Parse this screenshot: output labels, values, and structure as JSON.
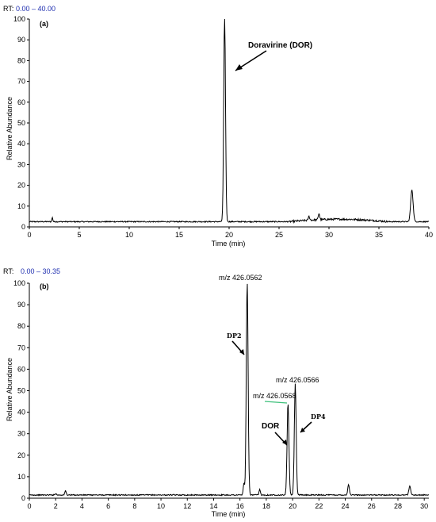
{
  "chart_data": [
    {
      "type": "line",
      "panel_label": "(a)",
      "rt_label": "RT:",
      "rt_range": "0.00 – 40.00",
      "xlabel": "Time (min)",
      "ylabel": "Relative Abundance",
      "xlim": [
        0,
        40
      ],
      "ylim": [
        0,
        100
      ],
      "xticks": [
        0,
        5,
        10,
        15,
        20,
        25,
        30,
        35,
        40
      ],
      "yticks": [
        0,
        10,
        20,
        30,
        40,
        50,
        60,
        70,
        80,
        90,
        100
      ],
      "baseline": 2.5,
      "peaks": [
        {
          "x": 2.3,
          "y": 4.5,
          "w": 0.05
        },
        {
          "x": 19.55,
          "y": 100,
          "w": 0.09
        },
        {
          "x": 28.0,
          "y": 4.3,
          "w": 0.07
        },
        {
          "x": 29.0,
          "y": 5.5,
          "w": 0.07
        },
        {
          "x": 38.3,
          "y": 18,
          "w": 0.12
        }
      ],
      "annotations": [
        {
          "text": "Doravirine (DOR)",
          "x": 20.8,
          "y": 75
        }
      ]
    },
    {
      "type": "line",
      "panel_label": "(b)",
      "rt_label": "RT:",
      "rt_range": "0.00 – 30.35",
      "xlabel": "Time (min)",
      "ylabel": "Relative Abundance",
      "xlim": [
        0,
        30.35
      ],
      "ylim": [
        0,
        100
      ],
      "xticks": [
        0,
        2,
        4,
        6,
        8,
        10,
        12,
        14,
        16,
        18,
        20,
        22,
        24,
        26,
        28,
        30
      ],
      "yticks": [
        0,
        10,
        20,
        30,
        40,
        50,
        60,
        70,
        80,
        90,
        100
      ],
      "baseline": 1.5,
      "peaks": [
        {
          "x": 2.0,
          "y": 2.2,
          "w": 0.05
        },
        {
          "x": 2.75,
          "y": 3.5,
          "w": 0.05
        },
        {
          "x": 16.3,
          "y": 7.0,
          "w": 0.05
        },
        {
          "x": 16.55,
          "y": 100,
          "w": 0.07
        },
        {
          "x": 17.5,
          "y": 4.0,
          "w": 0.05
        },
        {
          "x": 19.65,
          "y": 44,
          "w": 0.07
        },
        {
          "x": 20.2,
          "y": 53,
          "w": 0.07
        },
        {
          "x": 24.25,
          "y": 6.5,
          "w": 0.06
        },
        {
          "x": 28.9,
          "y": 5.5,
          "w": 0.07
        }
      ],
      "annotations": [
        {
          "text": "m/z 426.0562",
          "x": 16.55,
          "y": 100,
          "style": "peak"
        },
        {
          "text": "m/z 426.0566",
          "x": 20.2,
          "y": 53,
          "style": "peak"
        },
        {
          "text": "m/z 426.0568",
          "x": 19.65,
          "y": 44,
          "style": "peak"
        },
        {
          "text": "DP2",
          "x": 16.4,
          "y": 66,
          "style": "serif"
        },
        {
          "text": "DOR",
          "x": 19.6,
          "y": 20,
          "style": "bold"
        },
        {
          "text": "DP4",
          "x": 20.3,
          "y": 22,
          "style": "serif"
        }
      ]
    }
  ]
}
